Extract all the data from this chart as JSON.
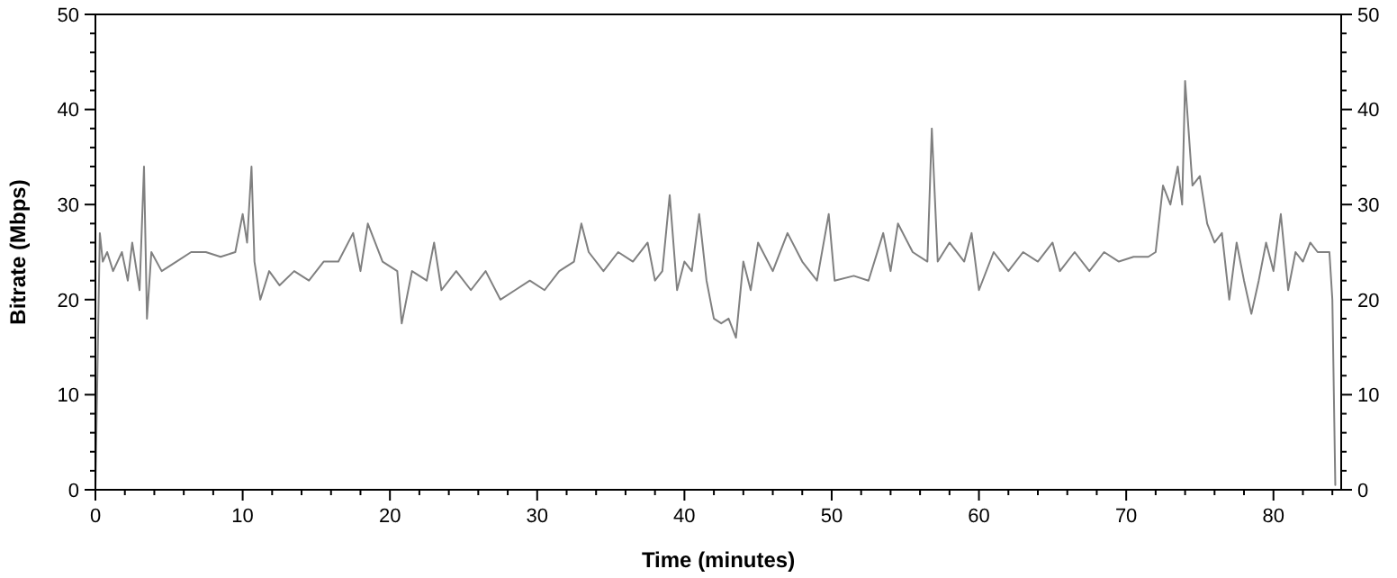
{
  "chart_data": {
    "type": "line",
    "xlabel": "Time (minutes)",
    "ylabel": "Bitrate (Mbps)",
    "xlim": [
      0,
      84.6
    ],
    "ylim": [
      0,
      50
    ],
    "y2lim": [
      0,
      50
    ],
    "xticks": [
      0,
      {
        "value": 2,
        "label": null
      },
      {
        "value": 4,
        "label": null
      },
      {
        "value": 6,
        "label": null
      },
      {
        "value": 8,
        "label": null
      },
      10,
      {
        "value": 12,
        "label": null
      },
      {
        "value": 14,
        "label": null
      },
      {
        "value": 16,
        "label": null
      },
      {
        "value": 18,
        "label": null
      },
      20,
      {
        "value": 22,
        "label": null
      },
      {
        "value": 24,
        "label": null
      },
      {
        "value": 26,
        "label": null
      },
      {
        "value": 28,
        "label": null
      },
      30,
      {
        "value": 32,
        "label": null
      },
      {
        "value": 34,
        "label": null
      },
      {
        "value": 36,
        "label": null
      },
      {
        "value": 38,
        "label": null
      },
      40,
      {
        "value": 42,
        "label": null
      },
      {
        "value": 44,
        "label": null
      },
      {
        "value": 46,
        "label": null
      },
      {
        "value": 48,
        "label": null
      },
      50,
      {
        "value": 52,
        "label": null
      },
      {
        "value": 54,
        "label": null
      },
      {
        "value": 56,
        "label": null
      },
      {
        "value": 58,
        "label": null
      },
      60,
      {
        "value": 62,
        "label": null
      },
      {
        "value": 64,
        "label": null
      },
      {
        "value": 66,
        "label": null
      },
      {
        "value": 68,
        "label": null
      },
      70,
      {
        "value": 72,
        "label": null
      },
      {
        "value": 74,
        "label": null
      },
      {
        "value": 76,
        "label": null
      },
      {
        "value": 78,
        "label": null
      },
      80,
      {
        "value": 82,
        "label": null
      },
      {
        "value": 84,
        "label": null
      }
    ],
    "yticks": [
      0,
      {
        "value": 2,
        "label": null
      },
      {
        "value": 4,
        "label": null
      },
      {
        "value": 6,
        "label": null
      },
      {
        "value": 8,
        "label": null
      },
      10,
      {
        "value": 12,
        "label": null
      },
      {
        "value": 14,
        "label": null
      },
      {
        "value": 16,
        "label": null
      },
      {
        "value": 18,
        "label": null
      },
      20,
      {
        "value": 22,
        "label": null
      },
      {
        "value": 24,
        "label": null
      },
      {
        "value": 26,
        "label": null
      },
      {
        "value": 28,
        "label": null
      },
      30,
      {
        "value": 32,
        "label": null
      },
      {
        "value": 34,
        "label": null
      },
      {
        "value": 36,
        "label": null
      },
      {
        "value": 38,
        "label": null
      },
      40,
      {
        "value": 42,
        "label": null
      },
      {
        "value": 44,
        "label": null
      },
      {
        "value": 46,
        "label": null
      },
      {
        "value": 48,
        "label": null
      },
      50
    ],
    "y2ticks": [
      0,
      {
        "value": 2,
        "label": null
      },
      {
        "value": 4,
        "label": null
      },
      {
        "value": 6,
        "label": null
      },
      {
        "value": 8,
        "label": null
      },
      10,
      {
        "value": 12,
        "label": null
      },
      {
        "value": 14,
        "label": null
      },
      {
        "value": 16,
        "label": null
      },
      {
        "value": 18,
        "label": null
      },
      20,
      {
        "value": 22,
        "label": null
      },
      {
        "value": 24,
        "label": null
      },
      {
        "value": 26,
        "label": null
      },
      {
        "value": 28,
        "label": null
      },
      30,
      {
        "value": 32,
        "label": null
      },
      {
        "value": 34,
        "label": null
      },
      {
        "value": 36,
        "label": null
      },
      {
        "value": 38,
        "label": null
      },
      40,
      {
        "value": 42,
        "label": null
      },
      {
        "value": 44,
        "label": null
      },
      {
        "value": 46,
        "label": null
      },
      {
        "value": 48,
        "label": null
      },
      50
    ],
    "grid": false,
    "marker": "none",
    "line_style": "solid",
    "series": [
      {
        "color": "#808080",
        "x": [
          0,
          0.3,
          0.5,
          0.8,
          1.2,
          1.8,
          2.2,
          2.5,
          3.0,
          3.3,
          3.5,
          3.8,
          4.5,
          5.5,
          6.5,
          7.5,
          8.5,
          9.5,
          10,
          10.3,
          10.6,
          10.8,
          11.2,
          11.8,
          12.5,
          13.5,
          14.5,
          15.5,
          16.5,
          17.5,
          18,
          18.5,
          19.5,
          20.5,
          20.8,
          21.5,
          22.5,
          23,
          23.5,
          24.5,
          25.5,
          26.5,
          27.5,
          28.5,
          29.5,
          30.5,
          31.5,
          32.5,
          33,
          33.5,
          34.5,
          35.5,
          36.5,
          37.5,
          38,
          38.5,
          39,
          39.5,
          40,
          40.5,
          41,
          41.5,
          42,
          42.5,
          43,
          43.5,
          44,
          44.5,
          45,
          46,
          47,
          48,
          49,
          49.8,
          50.2,
          51.5,
          52.5,
          53.5,
          54,
          54.5,
          55.5,
          56.5,
          56.8,
          57.2,
          58,
          59,
          59.5,
          60,
          61,
          62,
          63,
          64,
          65,
          65.5,
          66.5,
          67.5,
          68.5,
          69.5,
          70.5,
          71.5,
          72,
          72.5,
          73,
          73.5,
          73.8,
          74,
          74.5,
          75,
          75.5,
          76,
          76.5,
          77,
          77.5,
          78,
          78.5,
          79,
          79.5,
          80,
          80.5,
          81,
          81.5,
          82,
          82.5,
          83,
          83.8,
          84,
          84.2
        ],
        "values": [
          0,
          27,
          24,
          25,
          23,
          25,
          22,
          26,
          21,
          34,
          18,
          25,
          23,
          24,
          25,
          25,
          24.5,
          25,
          29,
          26,
          34,
          24,
          20,
          23,
          21.5,
          23,
          22,
          24,
          24,
          27,
          23,
          28,
          24,
          23,
          17.5,
          23,
          22,
          26,
          21,
          23,
          21,
          23,
          20,
          21,
          22,
          21,
          23,
          24,
          28,
          25,
          23,
          25,
          24,
          26,
          22,
          23,
          31,
          21,
          24,
          23,
          29,
          22,
          18,
          17.5,
          18,
          16,
          24,
          21,
          26,
          23,
          27,
          24,
          22,
          29,
          22,
          22.5,
          22,
          27,
          23,
          28,
          25,
          24,
          38,
          24,
          26,
          24,
          27,
          21,
          25,
          23,
          25,
          24,
          26,
          23,
          25,
          23,
          25,
          24,
          24.5,
          24.5,
          25,
          32,
          30,
          34,
          30,
          43,
          32,
          33,
          28,
          26,
          27,
          20,
          26,
          22,
          18.5,
          22,
          26,
          23,
          29,
          21,
          25,
          24,
          26,
          25,
          25,
          20,
          0.5
        ]
      }
    ]
  }
}
